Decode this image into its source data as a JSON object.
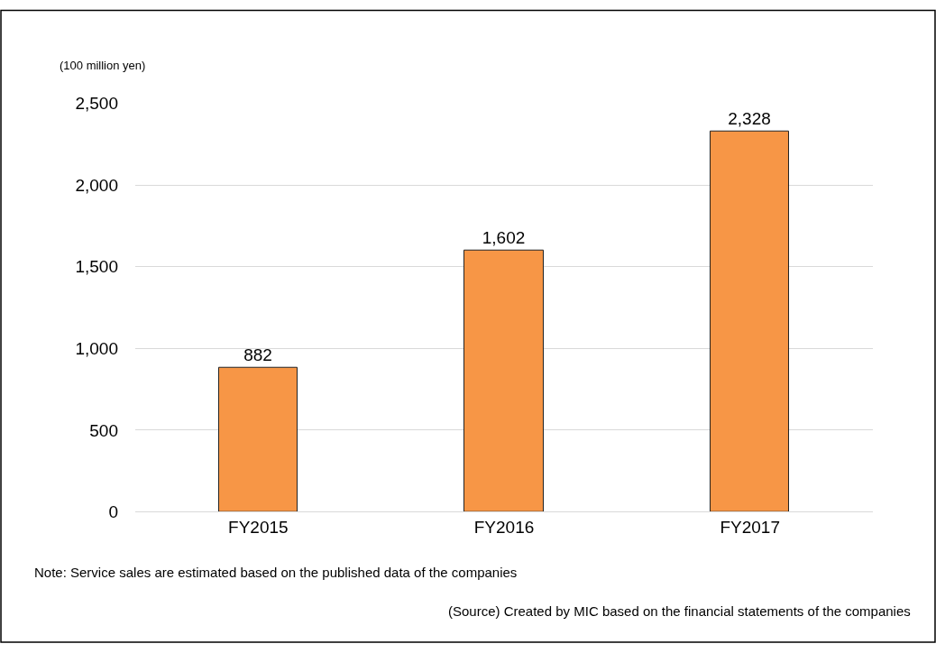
{
  "chart_data": {
    "type": "bar",
    "ylabel": "(100 million yen)",
    "categories": [
      "FY2015",
      "FY2016",
      "FY2017"
    ],
    "values": [
      882,
      1602,
      2328
    ],
    "color": "#f79646",
    "ylim": [
      0,
      2500
    ],
    "yticks": [
      0,
      {
        "value": 500,
        "label": "500"
      },
      {
        "value": 1000,
        "label": "1,000"
      },
      {
        "value": 1500,
        "label": "1,500"
      },
      {
        "value": 2000,
        "label": "2,000"
      },
      {
        "value": 2500,
        "label": "2,500"
      }
    ],
    "grid": "y",
    "value_labels": [
      "882",
      "1,602",
      "2,328"
    ],
    "legend": false,
    "annotations": [
      "Note: Service sales are estimated based on the published data of the companies",
      "(Source) Created by MIC based on the financial statements of the companies"
    ]
  }
}
